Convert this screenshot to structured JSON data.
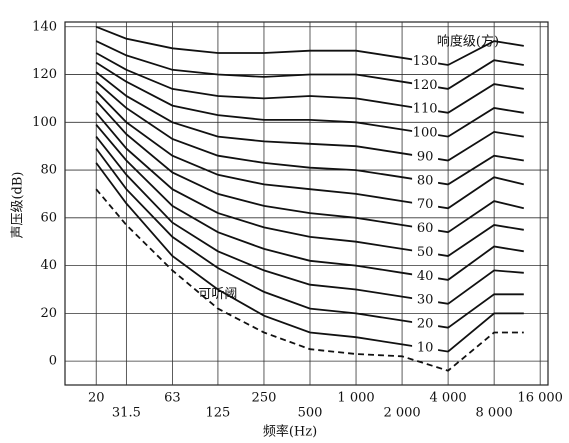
{
  "chart_data": {
    "type": "line",
    "x_scale": "log",
    "grid": true,
    "x_label": "频率(Hz)",
    "y_label": "声压级(dB)",
    "annotation": "响度级(方)",
    "xlim": [
      12.5,
      18000
    ],
    "ylim": [
      -10,
      142
    ],
    "xticks": [
      20,
      31.5,
      63,
      125,
      250,
      500,
      {
        "value": 1000,
        "label": "1 000"
      },
      {
        "value": 2000,
        "label": "2 000"
      },
      {
        "value": 4000,
        "label": "4 000"
      },
      {
        "value": 8000,
        "label": "8 000"
      },
      {
        "value": 16000,
        "label": "16 000"
      }
    ],
    "yticks": [
      0,
      20,
      40,
      60,
      80,
      100,
      120,
      140
    ],
    "x": [
      20,
      31.5,
      63,
      125,
      250,
      500,
      1000,
      2000,
      4000,
      8000,
      12500
    ],
    "series": [
      {
        "name": "130",
        "color": "#111",
        "values": [
          140,
          135,
          131,
          129,
          129,
          130,
          130,
          127,
          124,
          134,
          132
        ]
      },
      {
        "name": "120",
        "color": "#111",
        "values": [
          134,
          128,
          122,
          120,
          119,
          120,
          120,
          117,
          114,
          126,
          124
        ]
      },
      {
        "name": "110",
        "color": "#111",
        "values": [
          129,
          122,
          114,
          111,
          110,
          111,
          110,
          107,
          104,
          116,
          114
        ]
      },
      {
        "name": "100",
        "color": "#111",
        "values": [
          125,
          117,
          107,
          103,
          101,
          101,
          100,
          97,
          94,
          106,
          104
        ]
      },
      {
        "name": "90",
        "color": "#111",
        "values": [
          121,
          111,
          100,
          94,
          92,
          91,
          90,
          87,
          84,
          96,
          94
        ]
      },
      {
        "name": "80",
        "color": "#111",
        "values": [
          117,
          106,
          93,
          86,
          83,
          81,
          80,
          77,
          74,
          86,
          84
        ]
      },
      {
        "name": "70",
        "color": "#111",
        "values": [
          113,
          100,
          86,
          78,
          74,
          72,
          70,
          67,
          64,
          77,
          74
        ]
      },
      {
        "name": "60",
        "color": "#111",
        "values": [
          109,
          95,
          79,
          70,
          65,
          62,
          60,
          57,
          54,
          67,
          64
        ]
      },
      {
        "name": "50",
        "color": "#111",
        "values": [
          104,
          89,
          72,
          62,
          56,
          52,
          50,
          47,
          44,
          57,
          55
        ]
      },
      {
        "name": "40",
        "color": "#111",
        "values": [
          99,
          84,
          65,
          54,
          47,
          42,
          40,
          37,
          34,
          48,
          46
        ]
      },
      {
        "name": "30",
        "color": "#111",
        "values": [
          94,
          78,
          58,
          46,
          38,
          32,
          30,
          27,
          24,
          38,
          37
        ]
      },
      {
        "name": "20",
        "color": "#111",
        "values": [
          89,
          72,
          52,
          39,
          29,
          22,
          20,
          17,
          14,
          28,
          28
        ]
      },
      {
        "name": "10",
        "color": "#111",
        "values": [
          83,
          66,
          44,
          30,
          19,
          12,
          10,
          7,
          4,
          20,
          20
        ]
      },
      {
        "name": "可听阈",
        "color": "#111",
        "dashed": true,
        "values": [
          72,
          57,
          38,
          22,
          12,
          5,
          3,
          2,
          -4,
          12,
          12
        ]
      }
    ]
  }
}
